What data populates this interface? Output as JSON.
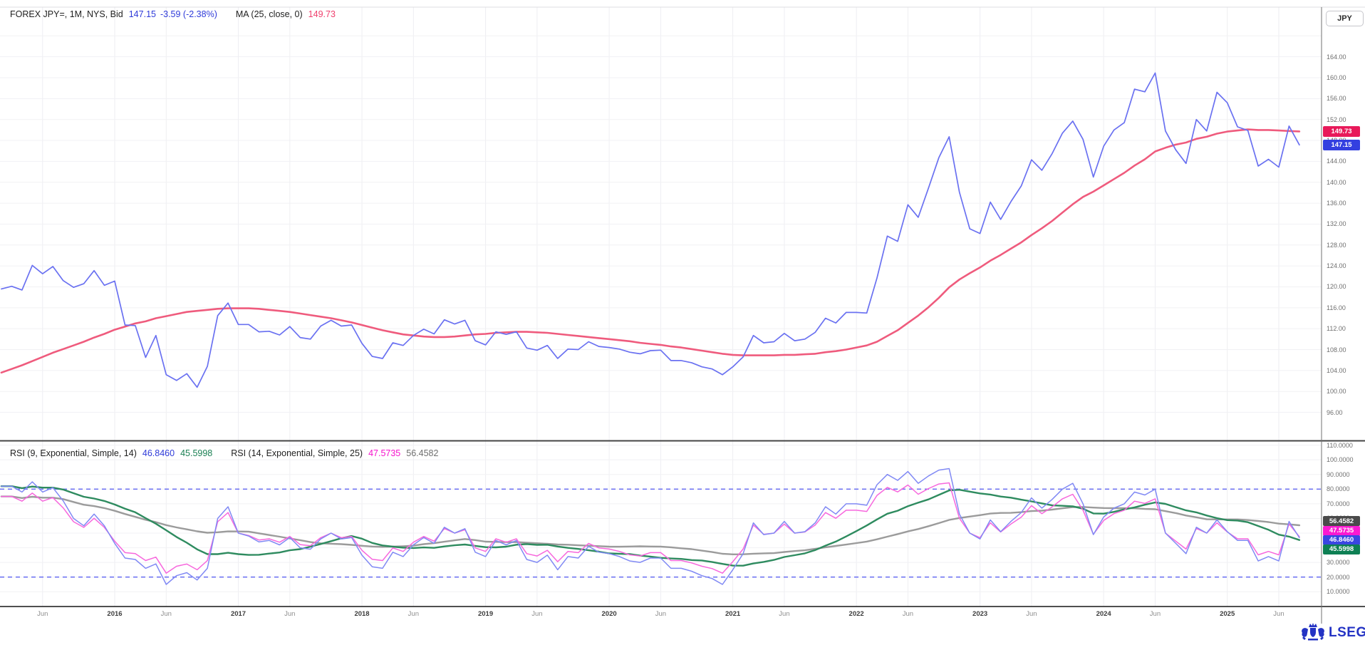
{
  "header": {
    "instrument": "FOREX JPY=, 1M, NYS, Bid",
    "last": "147.15",
    "change": "-3.59 (-2.38%)",
    "ma_label": "MA (25, close, 0)",
    "ma_value": "149.73"
  },
  "rsi_header": {
    "rsi1_label": "RSI (9, Exponential, Simple, 14)",
    "rsi1_value": "46.8460",
    "rsi1_ma_value": "45.5998",
    "rsi2_label": "RSI (14, Exponential, Simple, 25)",
    "rsi2_value": "47.5735",
    "rsi2_ma_value": "56.4582"
  },
  "colors": {
    "legend_text": "#1f1f1f",
    "blue_value": "#2f3bd9",
    "red_value": "#ef416e",
    "green_value": "#1b8054",
    "magenta_value": "#f514cd",
    "gray_value": "#6e6e6e",
    "price_line": "#6a71f1",
    "ma_line": "#ef5b7d",
    "rsi9_line": "#8089f4",
    "rsi14_line": "#f767dd",
    "rsi9_ma_line": "#2e8b5f",
    "rsi14_ma_line": "#9b9b9b",
    "band_line": "#7176f2",
    "grid": "#f1f1f4",
    "vgrid": "#eeeef2",
    "logo_blue": "#2433c4"
  },
  "axis": {
    "currency_button": "JPY",
    "price_ticks": [
      {
        "value": 164,
        "label": "164.00"
      },
      {
        "value": 160,
        "label": "160.00"
      },
      {
        "value": 156,
        "label": "156.00"
      },
      {
        "value": 152,
        "label": "152.00"
      },
      {
        "value": 148,
        "label": "148.00"
      },
      {
        "value": 144,
        "label": "144.00"
      },
      {
        "value": 140,
        "label": "140.00"
      },
      {
        "value": 136,
        "label": "136.00"
      },
      {
        "value": 132,
        "label": "132.00"
      },
      {
        "value": 128,
        "label": "128.00"
      },
      {
        "value": 124,
        "label": "124.00"
      },
      {
        "value": 120,
        "label": "120.00"
      },
      {
        "value": 116,
        "label": "116.00"
      },
      {
        "value": 112,
        "label": "112.00"
      },
      {
        "value": 108,
        "label": "108.00"
      },
      {
        "value": 104,
        "label": "104.00"
      },
      {
        "value": 100,
        "label": "100.00"
      },
      {
        "value": 96,
        "label": "96.00"
      }
    ],
    "price_badges": [
      {
        "label": "149.73",
        "value": 149.73,
        "color": "#e8195a"
      },
      {
        "label": "147.15",
        "value": 147.15,
        "color": "#3340e0"
      }
    ],
    "rsi_ticks": [
      {
        "value": 110,
        "label": "110.0000"
      },
      {
        "value": 100,
        "label": "100.0000"
      },
      {
        "value": 90,
        "label": "90.0000"
      },
      {
        "value": 80,
        "label": "80.0000"
      },
      {
        "value": 70,
        "label": "70.0000"
      },
      {
        "value": 60,
        "label": "60.0000"
      },
      {
        "value": 50,
        "label": "50.0000"
      },
      {
        "value": 40,
        "label": "40.0000"
      },
      {
        "value": 30,
        "label": "30.0000"
      },
      {
        "value": 20,
        "label": "20.0000"
      },
      {
        "value": 10,
        "label": "10.0000"
      }
    ],
    "rsi_badges": [
      {
        "label": "56.4582",
        "y": 731,
        "color": "#4a4a4a"
      },
      {
        "label": "47.5735",
        "y": 744.5,
        "color": "#fb19d1"
      },
      {
        "label": "46.8460",
        "y": 757.5,
        "color": "#3a46e2"
      },
      {
        "label": "45.5998",
        "y": 770.5,
        "color": "#0e8054"
      }
    ]
  },
  "branding": {
    "logo_text": "LSEG"
  },
  "chart_data": {
    "type": "line",
    "symbol": "FOREX JPY=",
    "interval": "1M",
    "x": {
      "start_month": "2015-02",
      "months": 127,
      "ticks": [
        {
          "index": 4,
          "label": "Jun",
          "kind": "month"
        },
        {
          "index": 11,
          "label": "2016",
          "kind": "year"
        },
        {
          "index": 16,
          "label": "Jun",
          "kind": "month"
        },
        {
          "index": 23,
          "label": "2017",
          "kind": "year"
        },
        {
          "index": 28,
          "label": "Jun",
          "kind": "month"
        },
        {
          "index": 35,
          "label": "2018",
          "kind": "year"
        },
        {
          "index": 40,
          "label": "Jun",
          "kind": "month"
        },
        {
          "index": 47,
          "label": "2019",
          "kind": "year"
        },
        {
          "index": 52,
          "label": "Jun",
          "kind": "month"
        },
        {
          "index": 59,
          "label": "2020",
          "kind": "year"
        },
        {
          "index": 64,
          "label": "Jun",
          "kind": "month"
        },
        {
          "index": 71,
          "label": "2021",
          "kind": "year"
        },
        {
          "index": 76,
          "label": "Jun",
          "kind": "month"
        },
        {
          "index": 83,
          "label": "2022",
          "kind": "year"
        },
        {
          "index": 88,
          "label": "Jun",
          "kind": "month"
        },
        {
          "index": 95,
          "label": "2023",
          "kind": "year"
        },
        {
          "index": 100,
          "label": "Jun",
          "kind": "month"
        },
        {
          "index": 107,
          "label": "2024",
          "kind": "year"
        },
        {
          "index": 112,
          "label": "Jun",
          "kind": "month"
        },
        {
          "index": 119,
          "label": "2025",
          "kind": "year"
        },
        {
          "index": 124,
          "label": "Jun",
          "kind": "month"
        }
      ]
    },
    "panels": [
      {
        "name": "price",
        "ylim": [
          96,
          168
        ],
        "grid_step": 4,
        "series": [
          {
            "name": "bid_close",
            "color": "#6a71f1",
            "width": 1.7,
            "values": [
              119.6,
              120.1,
              119.4,
              124.1,
              122.5,
              123.9,
              121.2,
              119.9,
              120.6,
              123.1,
              120.3,
              121.1,
              112.7,
              112.6,
              106.5,
              110.7,
              103.2,
              102.1,
              103.4,
              100.8,
              104.8,
              114.5,
              116.9,
              112.8,
              112.8,
              111.4,
              111.5,
              110.8,
              112.4,
              110.3,
              110.0,
              112.5,
              113.6,
              112.5,
              112.7,
              109.2,
              106.7,
              106.3,
              109.3,
              108.8,
              110.7,
              111.9,
              111.0,
              113.7,
              112.9,
              113.6,
              109.7,
              108.9,
              111.4,
              110.9,
              111.4,
              108.3,
              107.9,
              108.8,
              106.3,
              108.1,
              108.0,
              109.5,
              108.6,
              108.4,
              108.1,
              107.5,
              107.2,
              107.8,
              107.9,
              105.9,
              105.9,
              105.5,
              104.7,
              104.3,
              103.2,
              104.7,
              106.6,
              110.7,
              109.3,
              109.5,
              111.1,
              109.7,
              110.0,
              111.3,
              114.0,
              113.1,
              115.1,
              115.1,
              115.0,
              121.7,
              129.7,
              128.7,
              135.7,
              133.3,
              138.9,
              144.7,
              148.7,
              138.1,
              131.1,
              130.2,
              136.2,
              132.9,
              136.3,
              139.3,
              144.3,
              142.3,
              145.5,
              149.4,
              151.7,
              148.2,
              141.0,
              146.9,
              150.0,
              151.4,
              157.8,
              157.3,
              160.9,
              149.8,
              146.2,
              143.6,
              152.0,
              149.8,
              157.2,
              155.2,
              150.6,
              149.9,
              143.1,
              144.4,
              142.9,
              150.74,
              147.15
            ]
          },
          {
            "name": "ma25",
            "color": "#ef5b7d",
            "width": 2.6,
            "values": [
              103.6,
              104.3,
              105.0,
              105.8,
              106.6,
              107.4,
              108.1,
              108.8,
              109.5,
              110.3,
              111.0,
              111.8,
              112.4,
              113.0,
              113.4,
              114.0,
              114.4,
              114.8,
              115.2,
              115.4,
              115.6,
              115.8,
              115.9,
              115.9,
              115.9,
              115.8,
              115.6,
              115.4,
              115.2,
              114.9,
              114.6,
              114.3,
              114.0,
              113.6,
              113.2,
              112.7,
              112.2,
              111.7,
              111.3,
              110.9,
              110.7,
              110.5,
              110.4,
              110.4,
              110.5,
              110.7,
              110.9,
              111.0,
              111.2,
              111.3,
              111.4,
              111.4,
              111.3,
              111.2,
              111.0,
              110.8,
              110.6,
              110.4,
              110.2,
              110.0,
              109.8,
              109.6,
              109.3,
              109.1,
              108.9,
              108.6,
              108.4,
              108.1,
              107.8,
              107.5,
              107.2,
              107.0,
              106.9,
              106.9,
              106.9,
              106.9,
              107.0,
              107.0,
              107.1,
              107.2,
              107.5,
              107.7,
              108.0,
              108.4,
              108.8,
              109.5,
              110.6,
              111.7,
              113.1,
              114.5,
              116.1,
              117.9,
              119.9,
              121.4,
              122.6,
              123.7,
              125.0,
              126.1,
              127.3,
              128.5,
              129.9,
              131.2,
              132.6,
              134.2,
              135.8,
              137.2,
              138.2,
              139.4,
              140.6,
              141.8,
              143.2,
              144.4,
              145.9,
              146.6,
              147.2,
              147.6,
              148.3,
              148.7,
              149.3,
              149.7,
              149.9,
              150.1,
              150.0,
              150.0,
              149.9,
              149.8,
              149.73
            ]
          }
        ]
      },
      {
        "name": "rsi",
        "ylim": [
          0,
          110
        ],
        "grid_step": 10,
        "bands": [
          80,
          20
        ],
        "series": [
          {
            "name": "rsi9",
            "color": "#8089f4",
            "width": 1.5,
            "values": [
              82,
              82,
              78,
              85,
              78,
              81,
              72,
              60,
              55,
              63,
              55,
              43,
              33,
              32,
              26,
              29,
              15,
              21,
              23,
              18,
              26,
              60,
              68,
              50,
              48,
              44,
              45,
              42,
              47,
              40,
              39,
              46,
              50,
              46,
              47,
              35,
              27,
              26,
              37,
              34,
              42,
              47,
              43,
              54,
              50,
              53,
              37,
              34,
              45,
              42,
              45,
              32,
              30,
              35,
              25,
              34,
              33,
              41,
              37,
              36,
              34,
              31,
              30,
              33,
              33,
              26,
              26,
              24,
              21,
              19,
              15,
              25,
              36,
              57,
              49,
              50,
              58,
              50,
              51,
              57,
              68,
              63,
              70,
              70,
              69,
              83,
              90,
              86,
              92,
              84,
              89,
              93,
              94,
              63,
              50,
              46,
              59,
              51,
              58,
              64,
              74,
              67,
              73,
              80,
              84,
              70,
              49,
              61,
              67,
              70,
              78,
              76,
              80,
              50,
              43,
              36,
              54,
              50,
              59,
              51,
              45,
              45,
              31,
              34,
              31,
              58,
              46.85
            ]
          },
          {
            "name": "rsi14",
            "color": "#f767dd",
            "width": 1.5,
            "values": [
              75,
              75,
              71.8,
              77.3,
              71.8,
              74.2,
              67.2,
              57.8,
              53.9,
              60.1,
              53.9,
              44.5,
              36.7,
              36,
              31.3,
              33.6,
              22.7,
              27.4,
              28.9,
              25,
              31.3,
              57.8,
              64,
              50,
              48.4,
              45.3,
              46.1,
              43.8,
              47.7,
              42.2,
              41.4,
              46.9,
              50,
              46.9,
              47.7,
              38.3,
              32.1,
              31.3,
              39.9,
              37.5,
              43.8,
              47.7,
              44.5,
              53.1,
              50,
              52.3,
              39.9,
              37.5,
              46.1,
              43.8,
              46.1,
              36,
              34.4,
              38.3,
              30.5,
              37.5,
              36.7,
              43,
              39.9,
              39.1,
              37.5,
              35.2,
              34.4,
              36.7,
              36.7,
              31.3,
              31.3,
              29.7,
              27.4,
              25.8,
              22.7,
              30.5,
              39.1,
              55.5,
              49.2,
              50,
              56.2,
              50,
              50.8,
              55.5,
              64,
              60.1,
              65.6,
              65.6,
              64.8,
              75.7,
              81.2,
              78.1,
              82.8,
              76.5,
              80.4,
              83.5,
              84.3,
              60.1,
              50,
              46.9,
              57,
              50.8,
              56.2,
              60.9,
              68.7,
              63.3,
              67.9,
              73.4,
              76.5,
              65.6,
              49.2,
              58.6,
              63.3,
              65.6,
              71.8,
              70.3,
              73.4,
              50,
              44.5,
              39.1,
              53.1,
              50,
              57,
              50.8,
              46.1,
              46.1,
              35.2,
              37.5,
              35.2,
              56.2,
              47.57
            ]
          }
        ],
        "derived": [
          {
            "name": "rsi9_ma14",
            "source": "rsi9",
            "window": 14,
            "color": "#2e8b5f",
            "width": 2.4
          },
          {
            "name": "rsi14_ma25",
            "source": "rsi14",
            "window": 25,
            "color": "#9b9b9b",
            "width": 2.4
          }
        ]
      }
    ]
  }
}
